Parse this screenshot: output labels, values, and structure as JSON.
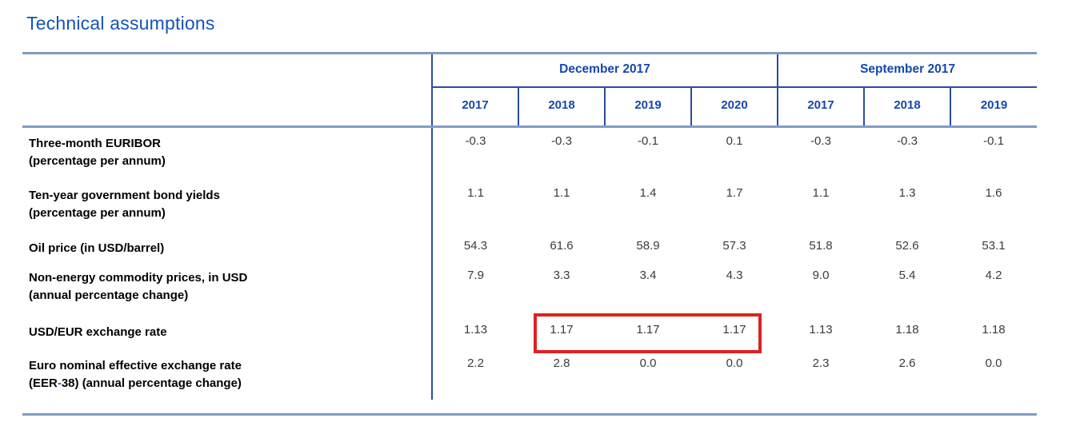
{
  "page": {
    "title": "Technical assumptions"
  },
  "table": {
    "column_groups": [
      {
        "label": "December 2017",
        "years": [
          "2017",
          "2018",
          "2019",
          "2020"
        ]
      },
      {
        "label": "September 2017",
        "years": [
          "2017",
          "2018",
          "2019"
        ]
      }
    ],
    "rows": [
      {
        "label": "Three-month EURIBOR",
        "sublabel": "(percentage per annum)",
        "december": [
          "-0.3",
          "-0.3",
          "-0.1",
          "0.1"
        ],
        "september": [
          "-0.3",
          "-0.3",
          "-0.1"
        ]
      },
      {
        "label": "Ten-year government bond yields",
        "sublabel": "(percentage per annum)",
        "december": [
          "1.1",
          "1.1",
          "1.4",
          "1.7"
        ],
        "september": [
          "1.1",
          "1.3",
          "1.6"
        ]
      },
      {
        "label": "Oil price (in USD/barrel)",
        "sublabel": "",
        "december": [
          "54.3",
          "61.6",
          "58.9",
          "57.3"
        ],
        "september": [
          "51.8",
          "52.6",
          "53.1"
        ]
      },
      {
        "label": "Non-energy commodity prices, in USD",
        "sublabel": "(annual percentage change)",
        "december": [
          "7.9",
          "3.3",
          "3.4",
          "4.3"
        ],
        "september": [
          "9.0",
          "5.4",
          "4.2"
        ]
      },
      {
        "label": "USD/EUR exchange rate",
        "sublabel": "",
        "december": [
          "1.13",
          "1.17",
          "1.17",
          "1.17"
        ],
        "september": [
          "1.13",
          "1.18",
          "1.18"
        ]
      },
      {
        "label": "Euro nominal effective exchange rate",
        "sublabel_parts": [
          "(EER",
          "-",
          "38) (annual percentage change)"
        ],
        "december": [
          "2.2",
          "2.8",
          "0.0",
          "0.0"
        ],
        "september": [
          "2.3",
          "2.6",
          "0.0"
        ]
      }
    ],
    "highlight": {
      "description": "red box around December 2017 projections 2018-2020 of USD/EUR exchange rate",
      "values": [
        "1.17",
        "1.17",
        "1.17"
      ]
    }
  },
  "colors": {
    "title_blue": "#1553b4",
    "header_blue": "#1448ad",
    "navy_line": "#2b4d9e",
    "light_rule": "#7f9bc9",
    "value_text": "#3b3b3b",
    "highlight_red": "#e02020"
  }
}
